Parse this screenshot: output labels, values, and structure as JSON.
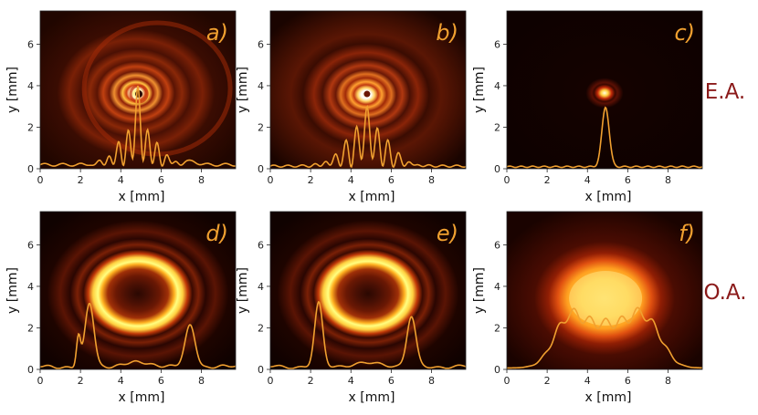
{
  "rows": [
    {
      "label": "E.A."
    },
    {
      "label": "O.A."
    }
  ],
  "panels": [
    {
      "id": "a",
      "label": "a)",
      "pattern": "ring-interference-offcenter",
      "center": [
        4.9,
        3.6
      ]
    },
    {
      "id": "b",
      "label": "b)",
      "pattern": "ring-interference",
      "center": [
        4.8,
        3.6
      ]
    },
    {
      "id": "c",
      "label": "c)",
      "pattern": "focused-spot",
      "center": [
        4.9,
        3.6
      ]
    },
    {
      "id": "d",
      "label": "d)",
      "pattern": "bright-annulus",
      "center": [
        4.9,
        3.6
      ]
    },
    {
      "id": "e",
      "label": "e)",
      "pattern": "bright-annulus",
      "center": [
        4.9,
        3.6
      ]
    },
    {
      "id": "f",
      "label": "f)",
      "pattern": "broad-spot",
      "center": [
        4.9,
        3.6
      ]
    }
  ],
  "axes": {
    "xlabel": "x [mm]",
    "ylabel": "y [mm]",
    "xlim": [
      0,
      9.7
    ],
    "ylim": [
      0,
      7.6
    ],
    "xticks": [
      "0",
      "2",
      "4",
      "6",
      "8"
    ],
    "yticks": [
      "0",
      "2",
      "4",
      "6"
    ]
  },
  "colors": {
    "profile": "#f0a030",
    "panel_label": "#f0a030",
    "row_label": "#8b1a1a",
    "colormap": "hot"
  }
}
